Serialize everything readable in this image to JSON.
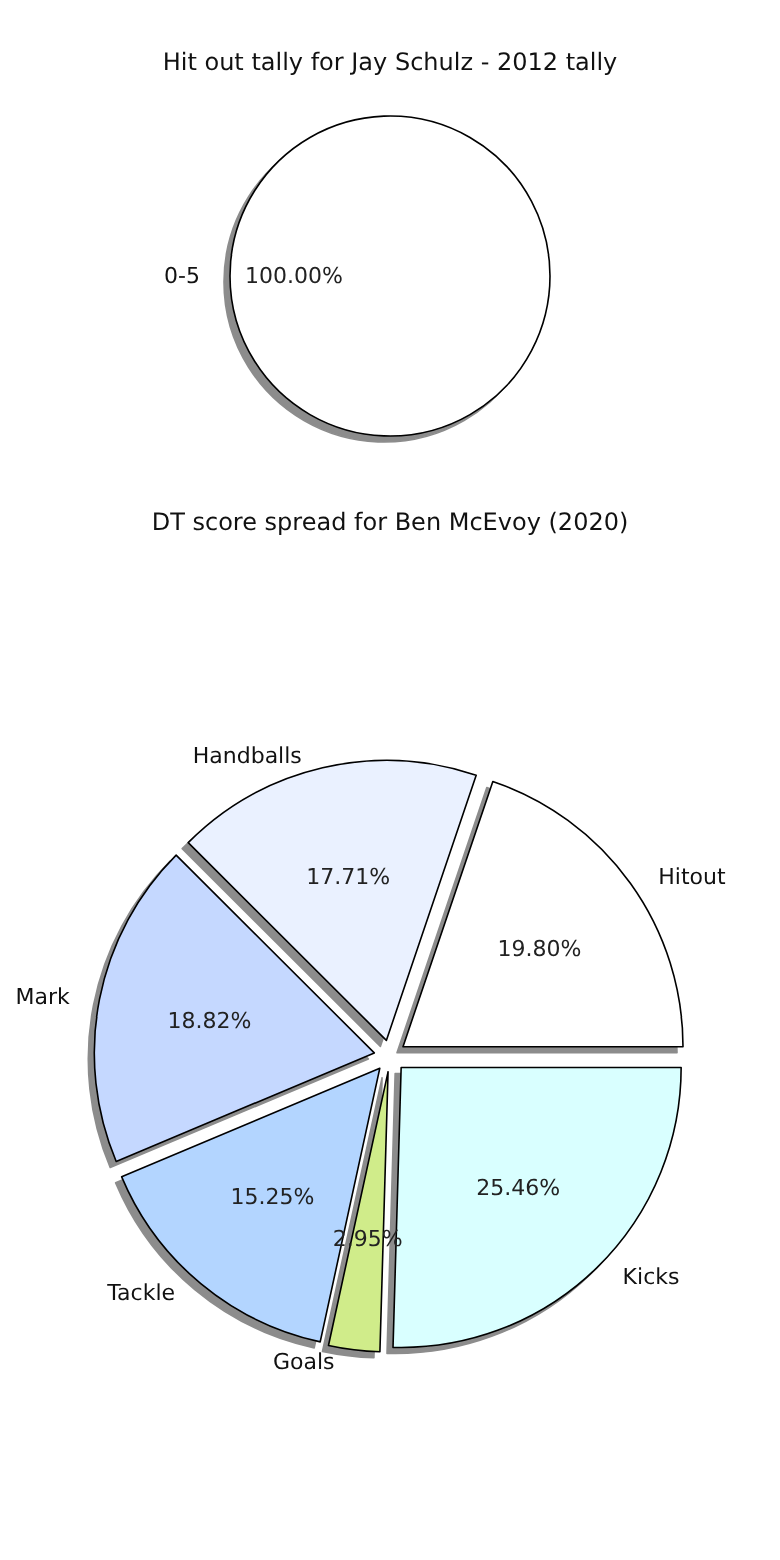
{
  "chart_data": [
    {
      "type": "pie",
      "title": "Hit out tally for Jay Schulz - 2012 tally",
      "categories": [
        "0-5"
      ],
      "values": [
        100
      ],
      "colors": [
        "#ffffff"
      ],
      "value_labels": [
        "100.00%"
      ]
    },
    {
      "type": "pie",
      "title": "DT score spread for Ben McEvoy (2020)",
      "categories": [
        "Hitout",
        "Handballs",
        "Mark",
        "Tackle",
        "Goals",
        "Kicks"
      ],
      "values": [
        19.8,
        17.71,
        18.82,
        15.25,
        2.95,
        25.46
      ],
      "colors": [
        "#ffffff",
        "#eaf1ff",
        "#c5d8ff",
        "#b3d5ff",
        "#d0ec8a",
        "#d9ffff"
      ],
      "value_labels": [
        "19.80%",
        "17.71%",
        "18.82%",
        "15.25%",
        "2.95%",
        "25.46%"
      ]
    }
  ]
}
